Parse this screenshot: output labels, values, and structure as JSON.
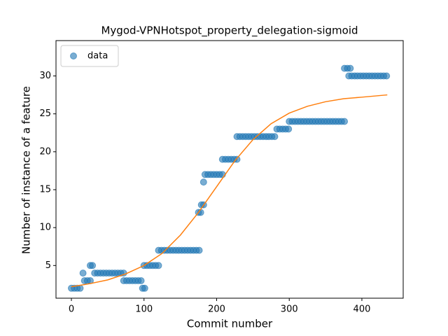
{
  "chart_data": {
    "type": "scatter",
    "title": "Mygod-VPNHotspot_property_delegation-sigmoid",
    "x_label": "Commit number",
    "y_label": "Number of instance of a feature",
    "xlim": [
      -21.2,
      456.9
    ],
    "ylim": [
      0.69,
      34.66
    ],
    "xticks": [
      0,
      100,
      200,
      300,
      400
    ],
    "yticks": [
      5,
      10,
      15,
      20,
      25,
      30
    ],
    "legend": "upper left",
    "series": [
      {
        "name": "data",
        "color": "#1f77b4",
        "x": [
          0,
          4,
          8,
          12,
          16,
          18,
          22,
          26,
          26,
          29,
          32,
          36,
          40,
          44,
          48,
          52,
          56,
          60,
          64,
          68,
          72,
          72,
          76,
          80,
          84,
          88,
          92,
          96,
          98,
          101,
          100,
          104,
          108,
          112,
          116,
          120,
          120,
          124,
          128,
          132,
          136,
          140,
          144,
          148,
          152,
          156,
          160,
          164,
          168,
          172,
          176,
          175,
          178,
          179,
          182,
          182,
          184,
          188,
          192,
          196,
          200,
          204,
          208,
          208,
          212,
          216,
          220,
          224,
          228,
          228,
          232,
          236,
          240,
          244,
          248,
          252,
          256,
          260,
          264,
          268,
          272,
          276,
          280,
          283,
          287,
          291,
          295,
          299,
          300,
          304,
          308,
          312,
          316,
          320,
          324,
          328,
          332,
          336,
          340,
          344,
          348,
          352,
          356,
          360,
          364,
          368,
          372,
          376,
          376,
          380,
          384,
          382,
          386,
          390,
          394,
          398,
          402,
          406,
          410,
          414,
          418,
          422,
          426,
          430,
          434
        ],
        "y": [
          2,
          2,
          2,
          2,
          4,
          3,
          3,
          3,
          5,
          5,
          4,
          4,
          4,
          4,
          4,
          4,
          4,
          4,
          4,
          4,
          4,
          3,
          3,
          3,
          3,
          3,
          3,
          3,
          2,
          2,
          5,
          5,
          5,
          5,
          5,
          5,
          7,
          7,
          7,
          7,
          7,
          7,
          7,
          7,
          7,
          7,
          7,
          7,
          7,
          7,
          7,
          12,
          12,
          13,
          13,
          16,
          17,
          17,
          17,
          17,
          17,
          17,
          17,
          19,
          19,
          19,
          19,
          19,
          19,
          22,
          22,
          22,
          22,
          22,
          22,
          22,
          22,
          22,
          22,
          22,
          22,
          22,
          22,
          23,
          23,
          23,
          23,
          23,
          24,
          24,
          24,
          24,
          24,
          24,
          24,
          24,
          24,
          24,
          24,
          24,
          24,
          24,
          24,
          24,
          24,
          24,
          24,
          24,
          31,
          31,
          31,
          30,
          30,
          30,
          30,
          30,
          30,
          30,
          30,
          30,
          30,
          30,
          30,
          30,
          30
        ]
      },
      {
        "color": "#ff7f0e",
        "x": [
          0,
          25,
          50,
          75,
          100,
          125,
          150,
          175,
          200,
          225,
          250,
          275,
          300,
          325,
          350,
          375,
          400,
          435
        ],
        "y": [
          2.2,
          2.6,
          3.1,
          3.9,
          5.0,
          6.6,
          9.0,
          12.0,
          15.4,
          18.8,
          21.6,
          23.7,
          25.1,
          26.0,
          26.6,
          27.0,
          27.2,
          27.5
        ]
      }
    ]
  }
}
